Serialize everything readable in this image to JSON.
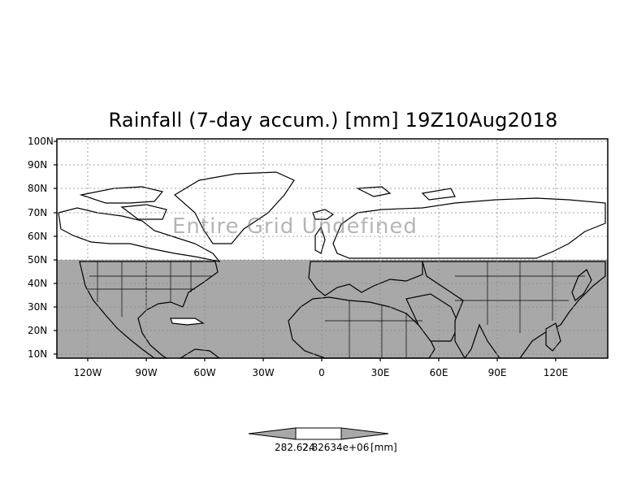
{
  "title": "Rainfall (7-day accum.) [mm] 19Z10Aug2018",
  "overlay_text": "Entire Grid Undefined",
  "map": {
    "lat_ticks": [
      "100N",
      "90N",
      "80N",
      "70N",
      "60N",
      "50N",
      "40N",
      "30N",
      "20N",
      "10N"
    ],
    "lon_ticks": [
      "120W",
      "90W",
      "60W",
      "30W",
      "0",
      "30E",
      "60E",
      "90E",
      "120E"
    ],
    "extent": {
      "lon_min": -135,
      "lon_max": 145,
      "lat_min": 8,
      "lat_max": 100
    },
    "grid": true,
    "grid_style": "dotted",
    "data_mask_color": "#a8a8a8",
    "land_outline_color": "#000000",
    "shaded_band_lat_max": 50
  },
  "colorbar": {
    "label_left": "282.624",
    "label_right": "2.82634e+06",
    "units": "[mm]",
    "fill_color": "#a8a8a8"
  }
}
